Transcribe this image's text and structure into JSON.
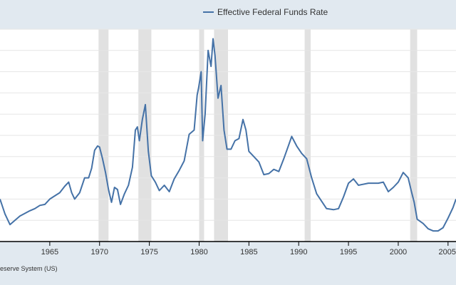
{
  "colors": {
    "background": "#e1e9f0",
    "plot_background": "#ffffff",
    "series": "#4572a7",
    "recession": "#e1e1e1",
    "gridline": "#e6e6e6",
    "axis": "#000000"
  },
  "legend": {
    "label": "Effective Federal Funds Rate"
  },
  "source": "eserve System (US)",
  "chart_data": {
    "type": "line",
    "title": "",
    "xlabel": "",
    "ylabel": "",
    "legend_position": "top-center",
    "grid": true,
    "xlim": [
      1960.0,
      2005.8
    ],
    "ylim": [
      0,
      20
    ],
    "x_ticks": [
      1965,
      1970,
      1975,
      1980,
      1985,
      1990,
      1995,
      2000,
      2005
    ],
    "x_tick_labels": [
      "1965",
      "1970",
      "1975",
      "1980",
      "1985",
      "1990",
      "1995",
      "2000",
      "2005"
    ],
    "y_grid": [
      0,
      2,
      4,
      6,
      8,
      10,
      12,
      14,
      16,
      18,
      20
    ],
    "recessions": [
      [
        1969.9,
        1970.9
      ],
      [
        1973.9,
        1975.2
      ],
      [
        1980.0,
        1980.5
      ],
      [
        1981.5,
        1982.9
      ],
      [
        1990.6,
        1991.2
      ],
      [
        2001.2,
        2001.9
      ]
    ],
    "series": [
      {
        "name": "Effective Federal Funds Rate",
        "x": [
          1960.0,
          1960.5,
          1961.0,
          1962.0,
          1963.0,
          1963.5,
          1964.0,
          1964.5,
          1965.0,
          1965.5,
          1966.0,
          1966.5,
          1966.9,
          1967.2,
          1967.5,
          1968.0,
          1968.5,
          1968.9,
          1969.2,
          1969.5,
          1969.8,
          1970.0,
          1970.3,
          1970.6,
          1970.9,
          1971.2,
          1971.5,
          1971.8,
          1972.1,
          1972.5,
          1972.9,
          1973.3,
          1973.6,
          1973.8,
          1974.0,
          1974.3,
          1974.6,
          1974.9,
          1975.2,
          1975.6,
          1976.0,
          1976.5,
          1977.0,
          1977.5,
          1978.0,
          1978.5,
          1979.0,
          1979.5,
          1979.8,
          1979.95,
          1980.2,
          1980.35,
          1980.6,
          1980.9,
          1981.2,
          1981.4,
          1981.6,
          1981.9,
          1982.2,
          1982.5,
          1982.8,
          1983.2,
          1983.6,
          1984.0,
          1984.4,
          1984.7,
          1985.0,
          1985.5,
          1986.0,
          1986.5,
          1987.0,
          1987.5,
          1988.0,
          1988.5,
          1989.0,
          1989.3,
          1989.8,
          1990.3,
          1990.8,
          1991.3,
          1991.8,
          1992.3,
          1992.8,
          1993.5,
          1994.0,
          1994.5,
          1995.0,
          1995.5,
          1996.0,
          1997.0,
          1998.0,
          1998.5,
          1999.0,
          1999.5,
          2000.0,
          2000.5,
          2001.0,
          2001.3,
          2001.6,
          2001.9,
          2002.5,
          2003.0,
          2003.5,
          2004.0,
          2004.5,
          2005.0,
          2005.5,
          2005.8
        ],
        "y": [
          4.0,
          2.6,
          1.6,
          2.4,
          2.9,
          3.1,
          3.4,
          3.5,
          4.0,
          4.3,
          4.6,
          5.2,
          5.6,
          4.6,
          4.0,
          4.6,
          6.0,
          6.0,
          6.9,
          8.6,
          9.0,
          8.9,
          7.8,
          6.5,
          4.9,
          3.7,
          5.1,
          4.9,
          3.5,
          4.5,
          5.3,
          7.0,
          10.5,
          10.8,
          9.5,
          11.5,
          12.9,
          8.5,
          6.2,
          5.6,
          4.8,
          5.3,
          4.7,
          5.9,
          6.7,
          7.6,
          10.1,
          10.5,
          13.8,
          14.5,
          16.0,
          9.5,
          12.0,
          18.0,
          16.5,
          19.1,
          17.5,
          13.5,
          14.7,
          10.5,
          8.7,
          8.7,
          9.5,
          9.7,
          11.5,
          10.5,
          8.5,
          8.0,
          7.5,
          6.3,
          6.4,
          6.8,
          6.6,
          7.8,
          9.1,
          9.9,
          9.0,
          8.3,
          7.8,
          6.0,
          4.5,
          3.8,
          3.1,
          3.0,
          3.1,
          4.2,
          5.5,
          5.9,
          5.3,
          5.5,
          5.5,
          5.6,
          4.7,
          5.1,
          5.6,
          6.5,
          6.0,
          4.8,
          3.7,
          2.1,
          1.7,
          1.2,
          1.0,
          1.0,
          1.3,
          2.2,
          3.2,
          4.0
        ]
      }
    ]
  }
}
